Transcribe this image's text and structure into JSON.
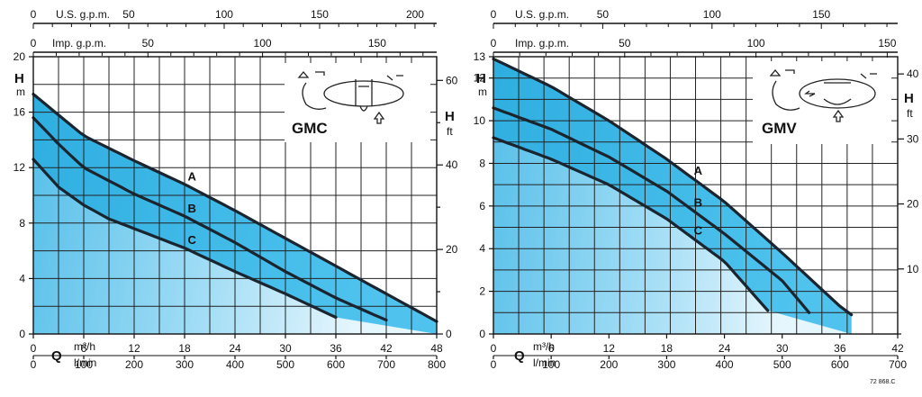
{
  "chart_data": [
    {
      "type": "line",
      "model": "GMC",
      "y_left": {
        "label": "H",
        "unit": "m",
        "range": [
          0,
          20
        ],
        "ticks": [
          0,
          4,
          8,
          12,
          16,
          20
        ]
      },
      "y_right": {
        "label": "H",
        "unit": "ft",
        "range": [
          0,
          65.6
        ],
        "ticks": [
          0,
          20,
          40,
          60
        ]
      },
      "x_q_m3h": {
        "label": "Q",
        "unit": "m³/h",
        "range": [
          0,
          48
        ],
        "ticks": [
          0,
          6,
          12,
          18,
          24,
          30,
          36,
          42,
          48
        ]
      },
      "x_q_lmin": {
        "unit": "l/min",
        "ticks": [
          0,
          100,
          200,
          300,
          400,
          500,
          600,
          700,
          800
        ]
      },
      "x_top_us": {
        "label": "U.S. g.p.m.",
        "ticks": [
          0,
          50,
          100,
          150,
          200
        ]
      },
      "x_top_imp": {
        "label": "Imp. g.p.m.",
        "ticks": [
          0,
          50,
          100,
          150
        ]
      },
      "grid": true,
      "series": [
        {
          "name": "A",
          "x": [
            0,
            6,
            12,
            18,
            24,
            30,
            36,
            42,
            48
          ],
          "y": [
            17.3,
            14.3,
            12.5,
            10.8,
            8.9,
            6.9,
            4.9,
            2.9,
            0.9
          ]
        },
        {
          "name": "B",
          "x": [
            0,
            3,
            6,
            12,
            18,
            24,
            30,
            36,
            42
          ],
          "y": [
            15.6,
            13.7,
            12.0,
            10.1,
            8.5,
            6.6,
            4.5,
            2.6,
            1.0
          ]
        },
        {
          "name": "C",
          "x": [
            0,
            3,
            6,
            9,
            12,
            18,
            24,
            30,
            36
          ],
          "y": [
            12.6,
            10.6,
            9.3,
            8.3,
            7.6,
            6.2,
            4.5,
            2.9,
            1.2
          ]
        }
      ]
    },
    {
      "type": "line",
      "model": "GMV",
      "y_left": {
        "label": "H",
        "unit": "m",
        "range": [
          0,
          13
        ],
        "ticks": [
          0,
          2,
          4,
          6,
          8,
          10,
          12,
          13
        ]
      },
      "y_right": {
        "label": "H",
        "unit": "ft",
        "range": [
          0,
          42.65
        ],
        "ticks": [
          10,
          20,
          30,
          40
        ]
      },
      "x_q_m3h": {
        "label": "Q",
        "unit": "m³/h",
        "range": [
          0,
          42
        ],
        "ticks": [
          0,
          6,
          12,
          18,
          24,
          30,
          36,
          42
        ]
      },
      "x_q_lmin": {
        "unit": "l/min",
        "ticks": [
          0,
          100,
          200,
          300,
          400,
          500,
          600,
          700
        ]
      },
      "x_top_us": {
        "label": "U.S. g.p.m.",
        "ticks": [
          0,
          50,
          100,
          150
        ]
      },
      "x_top_imp": {
        "label": "Imp. g.p.m.",
        "ticks": [
          0,
          50,
          100,
          150
        ]
      },
      "grid": true,
      "series": [
        {
          "name": "A",
          "x": [
            0,
            6,
            12,
            18,
            24,
            30,
            36,
            37.2
          ],
          "y": [
            12.9,
            11.6,
            10.0,
            8.2,
            6.2,
            3.8,
            1.3,
            0.9
          ]
        },
        {
          "name": "B",
          "x": [
            0,
            6,
            12,
            18,
            24,
            30,
            32.8
          ],
          "y": [
            10.6,
            9.6,
            8.3,
            6.7,
            4.7,
            2.5,
            1.0
          ]
        },
        {
          "name": "C",
          "x": [
            0,
            6,
            12,
            18,
            24,
            28.5
          ],
          "y": [
            9.2,
            8.2,
            7.0,
            5.4,
            3.4,
            1.1
          ]
        }
      ]
    }
  ],
  "stamp": "72 868.C"
}
